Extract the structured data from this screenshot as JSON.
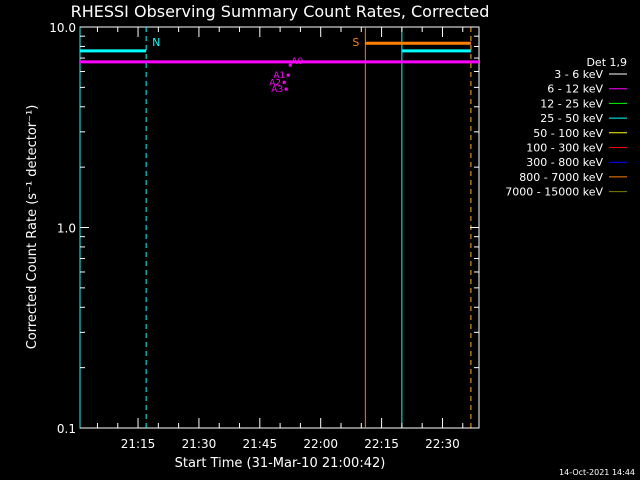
{
  "chart_data": {
    "type": "line",
    "title": "RHESSI Observing Summary Count Rates, Corrected",
    "xlabel": "Start Time (31-Mar-10 21:00:42)",
    "ylabel": "Corrected Count Rate (s⁻¹ detector⁻¹)",
    "yscale": "log",
    "ylim": [
      0.1,
      10.0
    ],
    "yticks": [
      "0.1",
      "1.0",
      "10.0"
    ],
    "xlim": [
      "21:00:42",
      "22:39:00"
    ],
    "xticks": [
      "21:15",
      "21:30",
      "21:45",
      "22:00",
      "22:15",
      "22:30"
    ],
    "legend": {
      "title": "Det 1,9",
      "placement": "right",
      "entries": [
        {
          "label": "3 - 6 keV",
          "color": "#ffffff"
        },
        {
          "label": "6 - 12 keV",
          "color": "#ff00ff"
        },
        {
          "label": "12 - 25 keV",
          "color": "#00ff00"
        },
        {
          "label": "25 - 50 keV",
          "color": "#00ffff"
        },
        {
          "label": "50 - 100 keV",
          "color": "#ffff00"
        },
        {
          "label": "100 - 300 keV",
          "color": "#ff0000"
        },
        {
          "label": "300 - 800 keV",
          "color": "#0000ff"
        },
        {
          "label": "800 - 7000 keV",
          "color": "#ff8000"
        },
        {
          "label": "7000 - 15000 keV",
          "color": "#808000"
        }
      ]
    },
    "series": [
      {
        "name": "6 - 12 keV",
        "color": "#ff00ff",
        "x": [
          "21:00:42",
          "22:39:00"
        ],
        "y": [
          6.7,
          6.7
        ]
      },
      {
        "name": "25 - 50 keV",
        "color": "#00ffff",
        "x": [
          "21:00:42",
          "21:17:00"
        ],
        "y": [
          7.6,
          7.6
        ]
      },
      {
        "name": "25 - 50 keV",
        "color": "#00ffff",
        "x": [
          "22:20:00",
          "22:37:00"
        ],
        "y": [
          7.6,
          7.6
        ]
      },
      {
        "name": "800 - 7000 keV",
        "color": "#ff8000",
        "x": [
          "22:11:00",
          "22:37:00"
        ],
        "y": [
          8.3,
          8.3
        ]
      }
    ],
    "vertical_lines": [
      {
        "time": "21:00:42",
        "color": "#00ffff",
        "style": "solid"
      },
      {
        "time": "21:17:00",
        "color": "#00ffff",
        "style": "dashed",
        "label": "N"
      },
      {
        "time": "22:11:00",
        "color": "#ff8000",
        "style": "solid",
        "label": "S"
      },
      {
        "time": "22:20:00",
        "color": "#00ffff",
        "style": "solid"
      },
      {
        "time": "22:37:00",
        "color": "#00ffff",
        "style": "dashed"
      },
      {
        "time": "22:37:00",
        "color": "#ff8000",
        "style": "dashed"
      }
    ],
    "annotations": [
      {
        "text": "A0",
        "color": "#ff00ff",
        "x": "21:52:30",
        "y": 6.45
      },
      {
        "text": "A1",
        "color": "#ff00ff",
        "x": "21:52:00",
        "y": 5.75
      },
      {
        "text": "A2",
        "color": "#ff00ff",
        "x": "21:51:00",
        "y": 5.3
      },
      {
        "text": "A3",
        "color": "#ff00ff",
        "x": "21:51:30",
        "y": 4.9
      }
    ],
    "timestamp": "14-Oct-2021 14:44"
  }
}
